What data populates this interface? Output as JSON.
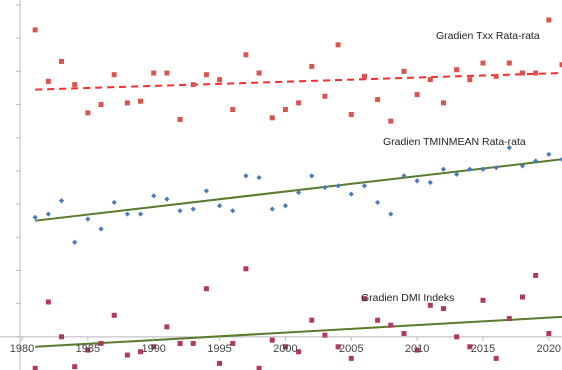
{
  "chart_data": {
    "type": "scatter",
    "title": "",
    "xlabel": "",
    "ylabel": "",
    "x_ticks": [
      "1980",
      "1985",
      "1990",
      "1995",
      "2000",
      "2005",
      "2010",
      "2015",
      "2020"
    ],
    "xlim": [
      1980,
      2021
    ],
    "ylim": [
      -1.0,
      10.0
    ],
    "grid": false,
    "legend": "none",
    "annotations": [
      {
        "id": "txx",
        "text": "Gradien Txx Rata-rata"
      },
      {
        "id": "tmin",
        "text": "Gradien TMINMEAN Rata-rata"
      },
      {
        "id": "dmi",
        "text": "Gradien DMI Indeks"
      }
    ],
    "series": [
      {
        "id": "txx",
        "marker": "square",
        "color": "#d9534f",
        "trend_color": "#ff2a2a",
        "trend_style": "dashed",
        "x": [
          1981,
          1982,
          1983,
          1984,
          1985,
          1986,
          1987,
          1988,
          1989,
          1990,
          1991,
          1992,
          1993,
          1994,
          1995,
          1996,
          1997,
          1998,
          1999,
          2000,
          2001,
          2002,
          2003,
          2004,
          2005,
          2006,
          2007,
          2008,
          2009,
          2010,
          2011,
          2012,
          2013,
          2014,
          2015,
          2016,
          2017,
          2018,
          2019,
          2020,
          2021
        ],
        "values": [
          9.25,
          7.7,
          8.3,
          7.6,
          6.75,
          7.0,
          7.9,
          7.05,
          7.1,
          7.95,
          7.95,
          6.55,
          7.6,
          7.9,
          7.75,
          6.85,
          8.5,
          7.95,
          6.6,
          6.85,
          7.05,
          8.15,
          7.25,
          8.8,
          6.7,
          7.85,
          7.15,
          6.5,
          8.0,
          7.3,
          7.75,
          7.05,
          8.05,
          7.75,
          8.25,
          7.85,
          8.25,
          7.95,
          7.95,
          9.55,
          8.2
        ],
        "trend": [
          [
            1981,
            7.45
          ],
          [
            2021,
            7.95
          ]
        ]
      },
      {
        "id": "tmin",
        "marker": "diamond",
        "color": "#4a7bbf",
        "trend_color": "#5a7a2e",
        "trend_style": "solid",
        "x": [
          1981,
          1982,
          1983,
          1984,
          1985,
          1986,
          1987,
          1988,
          1989,
          1990,
          1991,
          1992,
          1993,
          1994,
          1995,
          1996,
          1997,
          1998,
          1999,
          2000,
          2001,
          2002,
          2003,
          2004,
          2005,
          2006,
          2007,
          2008,
          2009,
          2010,
          2011,
          2012,
          2013,
          2014,
          2015,
          2016,
          2017,
          2018,
          2019,
          2020,
          2021
        ],
        "values": [
          3.6,
          3.7,
          4.1,
          2.85,
          3.55,
          3.25,
          4.05,
          3.7,
          3.7,
          4.25,
          4.15,
          3.8,
          3.85,
          4.4,
          3.95,
          3.8,
          4.85,
          4.8,
          3.85,
          3.95,
          4.35,
          4.85,
          4.5,
          4.55,
          4.3,
          4.55,
          4.05,
          3.7,
          4.85,
          4.7,
          4.65,
          5.05,
          4.9,
          5.05,
          5.05,
          5.1,
          5.7,
          5.15,
          5.3,
          5.5,
          5.35
        ],
        "trend": [
          [
            1981,
            3.5
          ],
          [
            2021,
            5.35
          ]
        ]
      },
      {
        "id": "dmi",
        "marker": "square",
        "color": "#b03a5a",
        "trend_color": "#5a7a2e",
        "trend_style": "solid",
        "x": [
          1981,
          1982,
          1983,
          1984,
          1985,
          1986,
          1987,
          1988,
          1989,
          1990,
          1991,
          1992,
          1993,
          1994,
          1995,
          1996,
          1997,
          1998,
          1999,
          2000,
          2001,
          2002,
          2003,
          2004,
          2005,
          2006,
          2007,
          2008,
          2009,
          2010,
          2011,
          2012,
          2013,
          2014,
          2015,
          2016,
          2017,
          2018,
          2019,
          2020
        ],
        "values": [
          -0.95,
          1.05,
          0.0,
          -0.9,
          -0.4,
          -0.2,
          0.65,
          -0.55,
          -0.45,
          -0.3,
          0.3,
          -0.2,
          -0.2,
          1.45,
          -0.8,
          -0.2,
          2.05,
          -0.95,
          -0.1,
          -0.3,
          -0.45,
          0.5,
          0.05,
          -0.3,
          -0.65,
          1.15,
          0.5,
          0.35,
          0.1,
          -0.4,
          0.95,
          0.85,
          0.0,
          -0.3,
          1.1,
          -0.65,
          0.55,
          1.2,
          1.85,
          0.1
        ],
        "trend": [
          [
            1981,
            -0.3
          ],
          [
            2021,
            0.6
          ]
        ]
      }
    ]
  }
}
